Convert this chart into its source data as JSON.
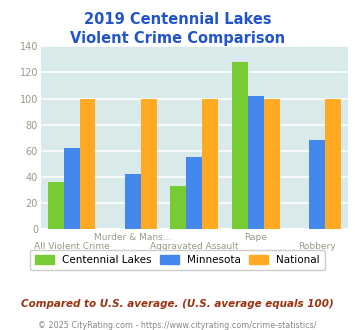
{
  "title_line1": "2019 Centennial Lakes",
  "title_line2": "Violent Crime Comparison",
  "cat_labels_line1": [
    "",
    "Murder & Mans...",
    "",
    "Rape",
    ""
  ],
  "cat_labels_line2": [
    "All Violent Crime",
    "",
    "Aggravated Assault",
    "",
    "Robbery"
  ],
  "centennial_lakes": [
    36,
    0,
    33,
    128,
    0
  ],
  "minnesota": [
    62,
    42,
    55,
    102,
    68
  ],
  "national": [
    100,
    100,
    100,
    100,
    100
  ],
  "color_centennial": "#77cc33",
  "color_minnesota": "#4488ee",
  "color_national": "#ffaa22",
  "ylim": [
    0,
    140
  ],
  "yticks": [
    0,
    20,
    40,
    60,
    80,
    100,
    120,
    140
  ],
  "title_color": "#2255cc",
  "bg_color": "#d8eaea",
  "grid_color": "#ffffff",
  "axis_label_color": "#999988",
  "legend_label_centennial": "Centennial Lakes",
  "legend_label_minnesota": "Minnesota",
  "legend_label_national": "National",
  "footer_text": "Compared to U.S. average. (U.S. average equals 100)",
  "copyright_text": "© 2025 CityRating.com - https://www.cityrating.com/crime-statistics/",
  "footer_color": "#993311",
  "copyright_color": "#888888"
}
